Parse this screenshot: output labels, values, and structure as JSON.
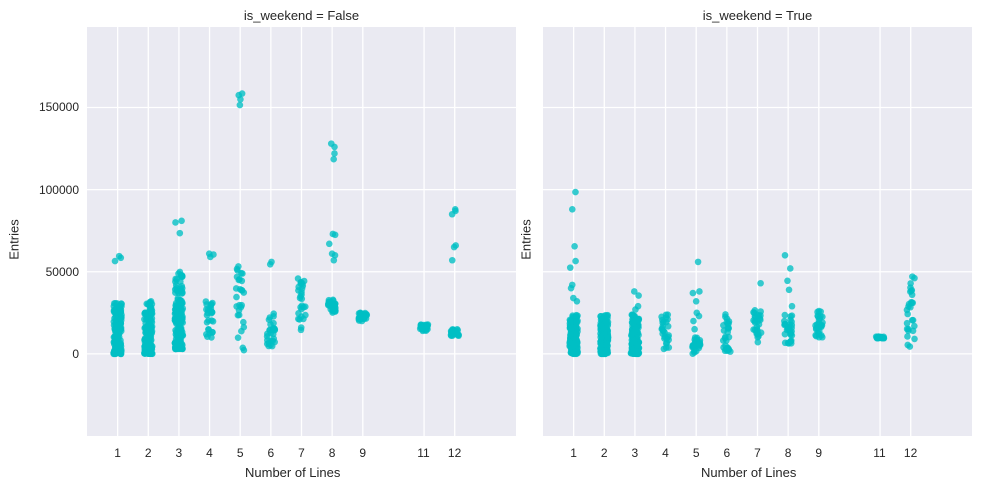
{
  "chart_data": [
    {
      "type": "scatter",
      "subtype": "stripplot",
      "title": "is_weekend = False",
      "xlabel": "Number of Lines",
      "ylabel": "Entries",
      "xticks": [
        1,
        2,
        3,
        4,
        5,
        6,
        7,
        8,
        9,
        11,
        12
      ],
      "yticks": [
        0,
        50000,
        100000,
        150000
      ],
      "ytick_labels": [
        "0",
        "50000",
        "100000",
        "150000"
      ],
      "xlim": [
        0,
        14
      ],
      "ylim": [
        -50000,
        199000
      ],
      "grid": true,
      "color": "#00bfc4",
      "groups": [
        {
          "x": 1,
          "min": 0,
          "max": 31000,
          "dense": true,
          "outliers": [
            59500,
            58500,
            56500
          ]
        },
        {
          "x": 2,
          "min": 0,
          "max": 33000,
          "dense": true,
          "outliers": []
        },
        {
          "x": 3,
          "min": 3000,
          "max": 50000,
          "dense": true,
          "outliers": [
            81000,
            80000,
            73500
          ]
        },
        {
          "x": 4,
          "min": 10000,
          "max": 33000,
          "dense": false,
          "outliers": [
            61000,
            60500,
            59000
          ]
        },
        {
          "x": 5,
          "min": 1500,
          "max": 54000,
          "dense": false,
          "outliers": [
            158500,
            157500,
            155000,
            151500
          ]
        },
        {
          "x": 6,
          "min": 4000,
          "max": 25000,
          "dense": false,
          "outliers": [
            56000,
            54500
          ]
        },
        {
          "x": 7,
          "min": 14500,
          "max": 46500,
          "dense": false,
          "outliers": []
        },
        {
          "x": 8,
          "min": 25000,
          "max": 33000,
          "dense": false,
          "outliers": [
            128000,
            126000,
            122000,
            118500,
            73000,
            72500,
            67000,
            61000,
            60000,
            57000
          ]
        },
        {
          "x": 9,
          "min": 20000,
          "max": 25000,
          "dense": false,
          "outliers": []
        },
        {
          "x": 11,
          "min": 14000,
          "max": 18000,
          "dense": false,
          "outliers": []
        },
        {
          "x": 12,
          "min": 11000,
          "max": 15000,
          "dense": false,
          "outliers": [
            88000,
            87000,
            85000,
            66000,
            65000,
            57000
          ]
        }
      ]
    },
    {
      "type": "scatter",
      "subtype": "stripplot",
      "title": "is_weekend = True",
      "xlabel": "Number of Lines",
      "ylabel": "Entries",
      "xticks": [
        1,
        2,
        3,
        4,
        5,
        6,
        7,
        8,
        9,
        11,
        12
      ],
      "yticks": [
        0,
        50000,
        100000,
        150000
      ],
      "xlim": [
        0,
        14
      ],
      "ylim": [
        -50000,
        199000
      ],
      "grid": true,
      "color": "#00bfc4",
      "groups": [
        {
          "x": 1,
          "min": 0,
          "max": 24000,
          "dense": true,
          "outliers": [
            98500,
            88000,
            65500,
            56500,
            52500,
            42000,
            40000,
            34000,
            32000
          ]
        },
        {
          "x": 2,
          "min": 0,
          "max": 24000,
          "dense": true,
          "outliers": []
        },
        {
          "x": 3,
          "min": 0,
          "max": 24000,
          "dense": true,
          "outliers": [
            38000,
            35500,
            29000,
            27000
          ]
        },
        {
          "x": 4,
          "min": 3000,
          "max": 24000,
          "dense": false,
          "outliers": []
        },
        {
          "x": 5,
          "min": 0,
          "max": 13000,
          "dense": false,
          "outliers": [
            56000,
            38000,
            37000,
            32000,
            25000,
            23000,
            20000,
            15000
          ]
        },
        {
          "x": 6,
          "min": 1000,
          "max": 24000,
          "dense": false,
          "outliers": []
        },
        {
          "x": 7,
          "min": 6000,
          "max": 27000,
          "dense": false,
          "outliers": [
            43000
          ]
        },
        {
          "x": 8,
          "min": 6000,
          "max": 24000,
          "dense": false,
          "outliers": [
            60000,
            52000,
            44500,
            39000,
            29000,
            19500,
            17500,
            16000
          ]
        },
        {
          "x": 9,
          "min": 10000,
          "max": 28500,
          "dense": false,
          "outliers": []
        },
        {
          "x": 11,
          "min": 9500,
          "max": 10500,
          "dense": false,
          "outliers": []
        },
        {
          "x": 12,
          "min": 3000,
          "max": 47500,
          "dense": false,
          "outliers": []
        }
      ]
    }
  ],
  "panels": [
    {
      "title": "is_weekend = False",
      "xlabel": "Number of Lines",
      "ylabel": "Entries"
    },
    {
      "title": "is_weekend = True",
      "xlabel": "Number of Lines",
      "ylabel": "Entries"
    }
  ]
}
